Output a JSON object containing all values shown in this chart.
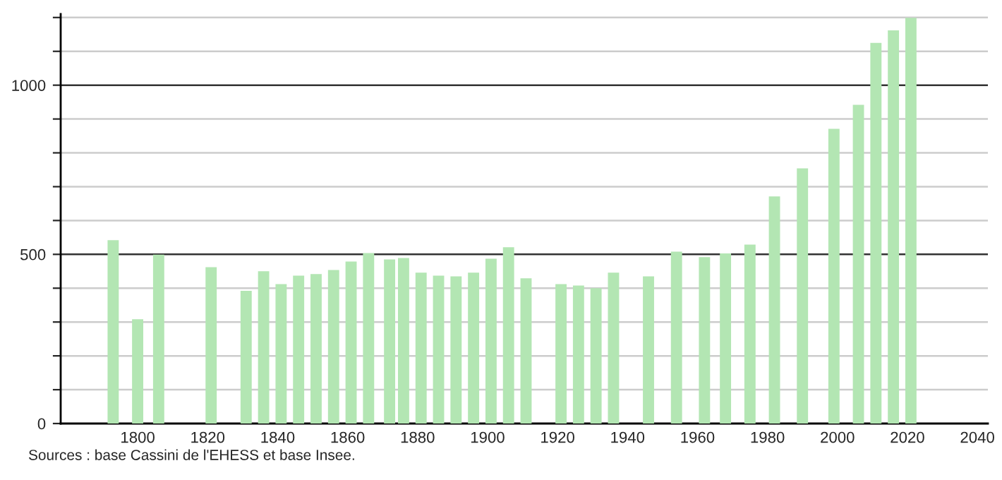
{
  "chart_data": {
    "type": "bar",
    "x": [
      1793,
      1800,
      1806,
      1821,
      1831,
      1836,
      1841,
      1846,
      1851,
      1856,
      1861,
      1866,
      1872,
      1876,
      1881,
      1886,
      1891,
      1896,
      1901,
      1906,
      1911,
      1921,
      1926,
      1931,
      1936,
      1946,
      1954,
      1962,
      1968,
      1975,
      1982,
      1990,
      1999,
      2006,
      2011,
      2016,
      2021
    ],
    "values": [
      542,
      308,
      499,
      462,
      392,
      450,
      412,
      437,
      442,
      454,
      479,
      504,
      485,
      489,
      446,
      437,
      435,
      446,
      487,
      521,
      429,
      412,
      408,
      400,
      446,
      435,
      508,
      492,
      503,
      529,
      671,
      754,
      871,
      942,
      1125,
      1162,
      1199
    ],
    "color": "#b3e6b3",
    "xlim": [
      1778,
      2043
    ],
    "xticks": [
      1800,
      1820,
      1840,
      1860,
      1880,
      1900,
      1920,
      1940,
      1960,
      1980,
      2000,
      2020,
      2040
    ],
    "ylim": [
      0,
      1210
    ],
    "yticks": [
      0,
      {
        "value": 100,
        "label": null
      },
      {
        "value": 200,
        "label": null
      },
      {
        "value": 300,
        "label": null
      },
      {
        "value": 400,
        "label": null
      },
      500,
      {
        "value": 600,
        "label": null
      },
      {
        "value": 700,
        "label": null
      },
      {
        "value": 800,
        "label": null
      },
      {
        "value": 900,
        "label": null
      },
      1000,
      {
        "value": 1100,
        "label": null
      },
      {
        "value": 1200,
        "label": null
      }
    ],
    "grid": "y",
    "annotations": [
      "Sources : base Cassini de l'EHESS et base Insee."
    ]
  }
}
